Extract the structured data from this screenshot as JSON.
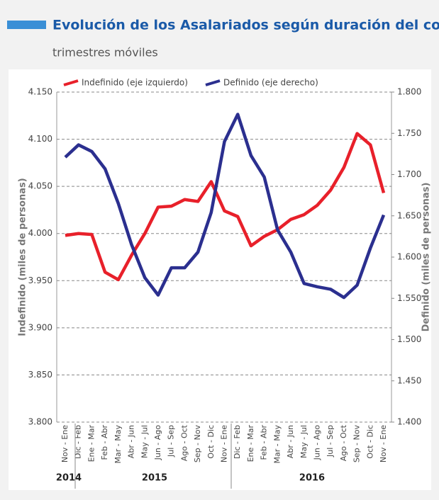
{
  "chart_data": {
    "type": "line",
    "title": "Evolución de los Asalariados según duración del contrato, total país",
    "subtitle": "trimestres móviles",
    "y_label": "Indefinido (miles de personas)",
    "y2_label": "Definido (miles de personas)",
    "categories": [
      "Nov - Ene",
      "Dic - Feb",
      "Ene - Mar",
      "Feb - Abr",
      "Mar - May",
      "Abr - Jun",
      "May - Jul",
      "Jun - Ago",
      "Jul - Sep",
      "Ago - Oct",
      "Sep - Nov",
      "Oct - Dic",
      "Nov - Ene",
      "Dic - Feb",
      "Ene - Mar",
      "Feb - Abr",
      "Mar - May",
      "Abr - Jun",
      "May - Jul",
      "Jun - Ago",
      "Jul - Sep",
      "Ago - Oct",
      "Sep - Nov",
      "Oct - Dic",
      "Nov - Ene"
    ],
    "years": [
      "2014",
      "2015",
      "2016"
    ],
    "series": [
      {
        "name": "Indefinido (eje izquierdo)",
        "color": "#e8202a",
        "axis": "y",
        "values": [
          3998,
          4000,
          3999,
          3959,
          3951,
          3977,
          4000,
          4028,
          4029,
          4036,
          4034,
          4055,
          4024,
          4018,
          3987,
          3997,
          4004,
          4015,
          4020,
          4030,
          4046,
          4070,
          4106,
          4094,
          4043
        ]
      },
      {
        "name": "Definido (eje derecho)",
        "color": "#2b2f8f",
        "axis": "y2",
        "values": [
          1721,
          1736,
          1728,
          1707,
          1665,
          1615,
          1575,
          1554,
          1587,
          1587,
          1606,
          1654,
          1740,
          1773,
          1723,
          1697,
          1633,
          1606,
          1568,
          1564,
          1561,
          1551,
          1566,
          1611,
          1651
        ]
      }
    ],
    "ylim": [
      3800,
      4150
    ],
    "yticks": [
      {
        "value": 3800,
        "label": "3.800"
      },
      {
        "value": 3850,
        "label": "3.850"
      },
      {
        "value": 3900,
        "label": "3.900"
      },
      {
        "value": 3950,
        "label": "3.950"
      },
      {
        "value": 4000,
        "label": "4.000"
      },
      {
        "value": 4050,
        "label": "4.050"
      },
      {
        "value": 4100,
        "label": "4.100"
      },
      {
        "value": 4150,
        "label": "4.150"
      }
    ],
    "y2lim": [
      1400,
      1800
    ],
    "y2ticks": [
      {
        "value": 1400,
        "label": "1.400"
      },
      {
        "value": 1450,
        "label": "1.450"
      },
      {
        "value": 1500,
        "label": "1.500"
      },
      {
        "value": 1550,
        "label": "1.550"
      },
      {
        "value": 1600,
        "label": "1.600"
      },
      {
        "value": 1650,
        "label": "1.650"
      },
      {
        "value": 1700,
        "label": "1.700"
      },
      {
        "value": 1750,
        "label": "1.750"
      },
      {
        "value": 1800,
        "label": "1.800"
      }
    ],
    "grid": true
  }
}
